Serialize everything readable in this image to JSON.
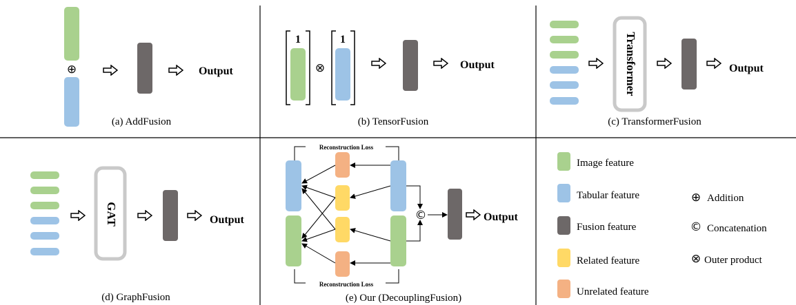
{
  "colors": {
    "image": "#a9d18e",
    "tabular": "#9dc3e6",
    "fusion": "#6d6868",
    "related": "#ffd966",
    "unrelated": "#f4b183",
    "module_border": "#c9c9c9"
  },
  "icons": {
    "arrow": "hollow-right-arrow-icon",
    "addition": "circled-plus-icon",
    "outer_product": "circled-times-icon",
    "concatenation": "circled-c-icon"
  },
  "panels": {
    "a": {
      "caption": "(a) AddFusion",
      "output": "Output",
      "operator": "⊕"
    },
    "b": {
      "caption": "(b) TensorFusion",
      "output": "Output",
      "operator": "⊗",
      "bracket_label": "1"
    },
    "c": {
      "caption": "(c) TransformerFusion",
      "output": "Output",
      "module": "Transformer"
    },
    "d": {
      "caption": "(d) GraphFusion",
      "output": "Output",
      "module": "GAT"
    },
    "e": {
      "caption": "(e) Our (DecouplingFusion)",
      "output": "Output",
      "loss_top": "Reconstruction Loss",
      "loss_bottom": "Reconstruction Loss",
      "operator": "©"
    }
  },
  "legend": {
    "features": [
      {
        "label": "Image feature",
        "key": "image"
      },
      {
        "label": "Tabular feature",
        "key": "tabular"
      },
      {
        "label": "Fusion feature",
        "key": "fusion"
      },
      {
        "label": "Related feature",
        "key": "related"
      },
      {
        "label": "Unrelated feature",
        "key": "unrelated"
      }
    ],
    "operators": [
      {
        "symbol": "⊕",
        "label": "Addition"
      },
      {
        "symbol": "©",
        "label": "Concatenation"
      },
      {
        "symbol": "⊗",
        "label": "Outer product"
      }
    ]
  }
}
